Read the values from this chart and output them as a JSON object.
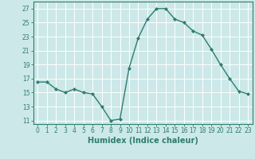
{
  "x": [
    0,
    1,
    2,
    3,
    4,
    5,
    6,
    7,
    8,
    9,
    10,
    11,
    12,
    13,
    14,
    15,
    16,
    17,
    18,
    19,
    20,
    21,
    22,
    23
  ],
  "y": [
    16.5,
    16.5,
    15.5,
    15.0,
    15.5,
    15.0,
    14.8,
    13.0,
    11.0,
    11.2,
    18.5,
    22.8,
    25.5,
    27.0,
    27.0,
    25.5,
    25.0,
    23.8,
    23.2,
    21.2,
    19.0,
    17.0,
    15.2,
    14.8
  ],
  "line_color": "#2e7d6e",
  "marker": "D",
  "marker_size": 2.0,
  "bg_color": "#cce8e8",
  "grid_color": "#ffffff",
  "xlabel": "Humidex (Indice chaleur)",
  "xlim": [
    -0.5,
    23.5
  ],
  "ylim": [
    10.5,
    28.0
  ],
  "yticks": [
    11,
    13,
    15,
    17,
    19,
    21,
    23,
    25,
    27
  ],
  "xticks": [
    0,
    1,
    2,
    3,
    4,
    5,
    6,
    7,
    8,
    9,
    10,
    11,
    12,
    13,
    14,
    15,
    16,
    17,
    18,
    19,
    20,
    21,
    22,
    23
  ],
  "tick_fontsize": 5.5,
  "label_fontsize": 7.0,
  "line_width": 1.0
}
